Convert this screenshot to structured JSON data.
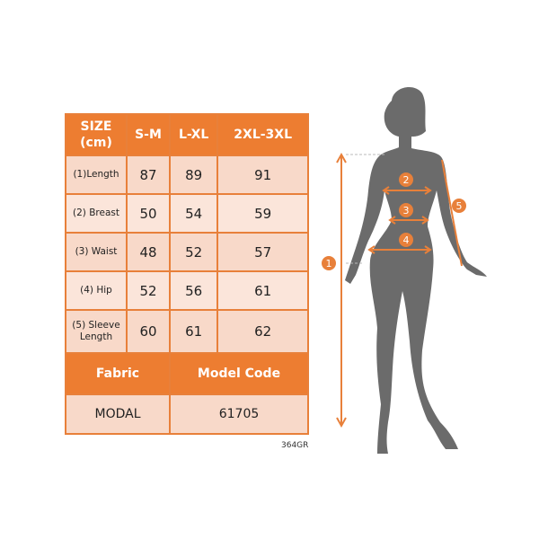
{
  "table": {
    "header": [
      "SIZE\n(cm)",
      "S-M",
      "L-XL",
      "2XL-3XL"
    ],
    "header_line1": "SIZE",
    "header_line2": "(cm)",
    "rows": [
      {
        "label": "(1)Length",
        "values": [
          "87",
          "89",
          "91"
        ]
      },
      {
        "label": "(2) Breast",
        "values": [
          "50",
          "54",
          "59"
        ]
      },
      {
        "label": "(3) Waist",
        "values": [
          "48",
          "52",
          "57"
        ]
      },
      {
        "label": "(4) Hip",
        "values": [
          "52",
          "56",
          "61"
        ]
      },
      {
        "label": "(5) Sleeve Length",
        "label_line1": "(5) Sleeve",
        "label_line2": "Length",
        "values": [
          "60",
          "61",
          "62"
        ]
      }
    ],
    "fabric_label": "Fabric",
    "model_code_label": "Model Code",
    "fabric_value": "MODAL",
    "model_code_value": "61705"
  },
  "product_code": "364GR",
  "figure": {
    "markers": [
      "1",
      "2",
      "3",
      "4",
      "5"
    ],
    "accent_color": "#e8803a",
    "silhouette_color": "#6b6b6b"
  }
}
